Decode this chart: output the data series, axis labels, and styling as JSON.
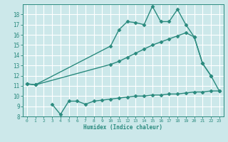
{
  "line1_x": [
    0,
    1,
    10,
    11,
    12,
    13,
    14,
    15,
    16,
    17,
    18,
    19,
    20,
    21,
    22
  ],
  "line1_y": [
    11.2,
    11.1,
    14.9,
    16.5,
    17.3,
    17.2,
    17.0,
    18.8,
    17.3,
    17.3,
    18.5,
    17.0,
    15.8,
    13.2,
    12.0
  ],
  "line2_x": [
    0,
    1,
    10,
    11,
    12,
    13,
    14,
    15,
    16,
    17,
    18,
    19,
    20,
    21,
    22,
    23
  ],
  "line2_y": [
    11.2,
    11.1,
    13.1,
    13.4,
    13.8,
    14.2,
    14.6,
    15.0,
    15.3,
    15.6,
    15.9,
    16.2,
    15.8,
    13.2,
    12.0,
    10.5
  ],
  "line3_x": [
    3,
    4,
    5,
    6,
    7,
    8,
    9,
    10,
    11,
    12,
    13,
    14,
    15,
    16,
    17,
    18,
    19,
    20,
    21,
    22,
    23
  ],
  "line3_y": [
    9.2,
    8.2,
    9.5,
    9.5,
    9.2,
    9.5,
    9.6,
    9.7,
    9.8,
    9.9,
    10.0,
    10.0,
    10.1,
    10.1,
    10.2,
    10.2,
    10.3,
    10.4,
    10.4,
    10.5,
    10.5
  ],
  "line_color": "#2a8a7e",
  "bg_color": "#cce8ea",
  "grid_color": "#ffffff",
  "xlabel": "Humidex (Indice chaleur)",
  "ylim": [
    8,
    19
  ],
  "xlim": [
    -0.5,
    23.5
  ],
  "yticks": [
    8,
    9,
    10,
    11,
    12,
    13,
    14,
    15,
    16,
    17,
    18
  ],
  "xticks": [
    0,
    1,
    2,
    3,
    4,
    5,
    6,
    7,
    8,
    9,
    10,
    11,
    12,
    13,
    14,
    15,
    16,
    17,
    18,
    19,
    20,
    21,
    22,
    23
  ],
  "marker": "D",
  "markersize": 2.5,
  "linewidth": 1.0
}
